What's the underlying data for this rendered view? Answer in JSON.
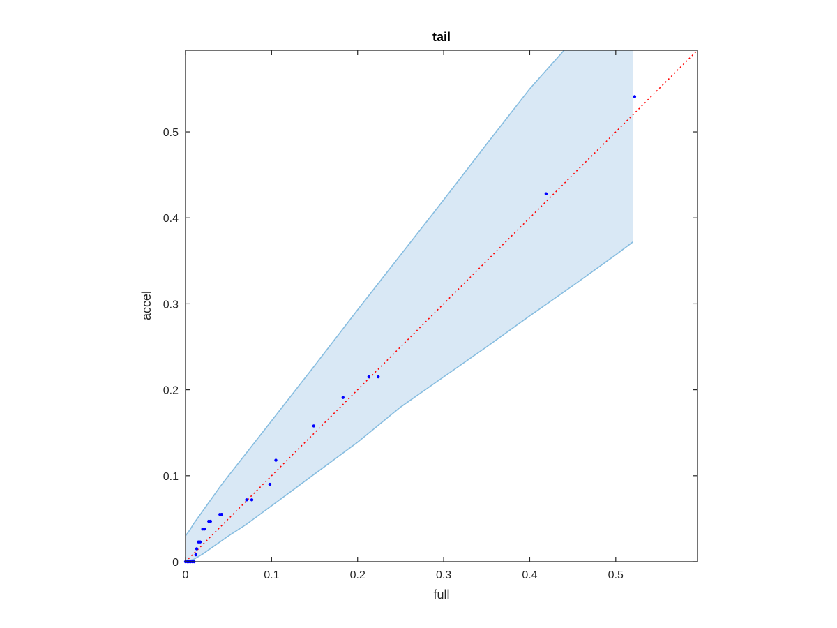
{
  "chart_data": {
    "type": "scatter",
    "title": "tail",
    "xlabel": "full",
    "ylabel": "accel",
    "xlim": [
      0,
      0.595
    ],
    "ylim": [
      0,
      0.595
    ],
    "xticks": [
      0,
      0.1,
      0.2,
      0.3,
      0.4,
      0.5
    ],
    "yticks": [
      0,
      0.1,
      0.2,
      0.3,
      0.4,
      0.5
    ],
    "xtick_labels": [
      "0",
      "0.1",
      "0.2",
      "0.3",
      "0.4",
      "0.5"
    ],
    "ytick_labels": [
      "0",
      "0.1",
      "0.2",
      "0.3",
      "0.4",
      "0.5"
    ],
    "grid": false,
    "colors": {
      "points": "#0000ff",
      "band_fill": "#d9e8f5",
      "band_edge": "#87bde0",
      "reference_line": "#ff0000",
      "axes": "#262626"
    },
    "reference_line": {
      "x": [
        0,
        0.595
      ],
      "y": [
        0,
        0.595
      ],
      "style": "dotted"
    },
    "band": {
      "upper": [
        [
          0,
          0.03
        ],
        [
          0.005,
          0.037
        ],
        [
          0.01,
          0.045
        ],
        [
          0.02,
          0.059
        ],
        [
          0.03,
          0.073
        ],
        [
          0.04,
          0.087
        ],
        [
          0.05,
          0.1
        ],
        [
          0.1,
          0.164
        ],
        [
          0.15,
          0.228
        ],
        [
          0.2,
          0.293
        ],
        [
          0.25,
          0.357
        ],
        [
          0.3,
          0.421
        ],
        [
          0.35,
          0.486
        ],
        [
          0.4,
          0.55
        ],
        [
          0.44,
          0.595
        ]
      ],
      "right_top": [
        0.52,
        0.595
      ],
      "lower": [
        [
          0.52,
          0.372
        ],
        [
          0.5,
          0.357
        ],
        [
          0.45,
          0.321
        ],
        [
          0.4,
          0.286
        ],
        [
          0.35,
          0.25
        ],
        [
          0.3,
          0.215
        ],
        [
          0.25,
          0.18
        ],
        [
          0.2,
          0.139
        ],
        [
          0.15,
          0.102
        ],
        [
          0.1,
          0.065
        ],
        [
          0.07,
          0.043
        ],
        [
          0.05,
          0.03
        ],
        [
          0.03,
          0.016
        ],
        [
          0.02,
          0.009
        ],
        [
          0.01,
          0.003
        ],
        [
          0,
          0
        ]
      ]
    },
    "series": [
      {
        "x": [
          0,
          0.002,
          0.004,
          0.006,
          0.008,
          0.01,
          0.012,
          0.013,
          0.015,
          0.017,
          0.02,
          0.022,
          0.027,
          0.029,
          0.04,
          0.042,
          0.071,
          0.077,
          0.098,
          0.105,
          0.149,
          0.183,
          0.213,
          0.224,
          0.419,
          0.522
        ],
        "y": [
          0,
          0,
          0,
          0,
          0,
          0,
          0.008,
          0.015,
          0.023,
          0.023,
          0.038,
          0.038,
          0.047,
          0.047,
          0.055,
          0.055,
          0.072,
          0.072,
          0.09,
          0.118,
          0.158,
          0.191,
          0.215,
          0.215,
          0.428,
          0.541
        ]
      }
    ]
  }
}
